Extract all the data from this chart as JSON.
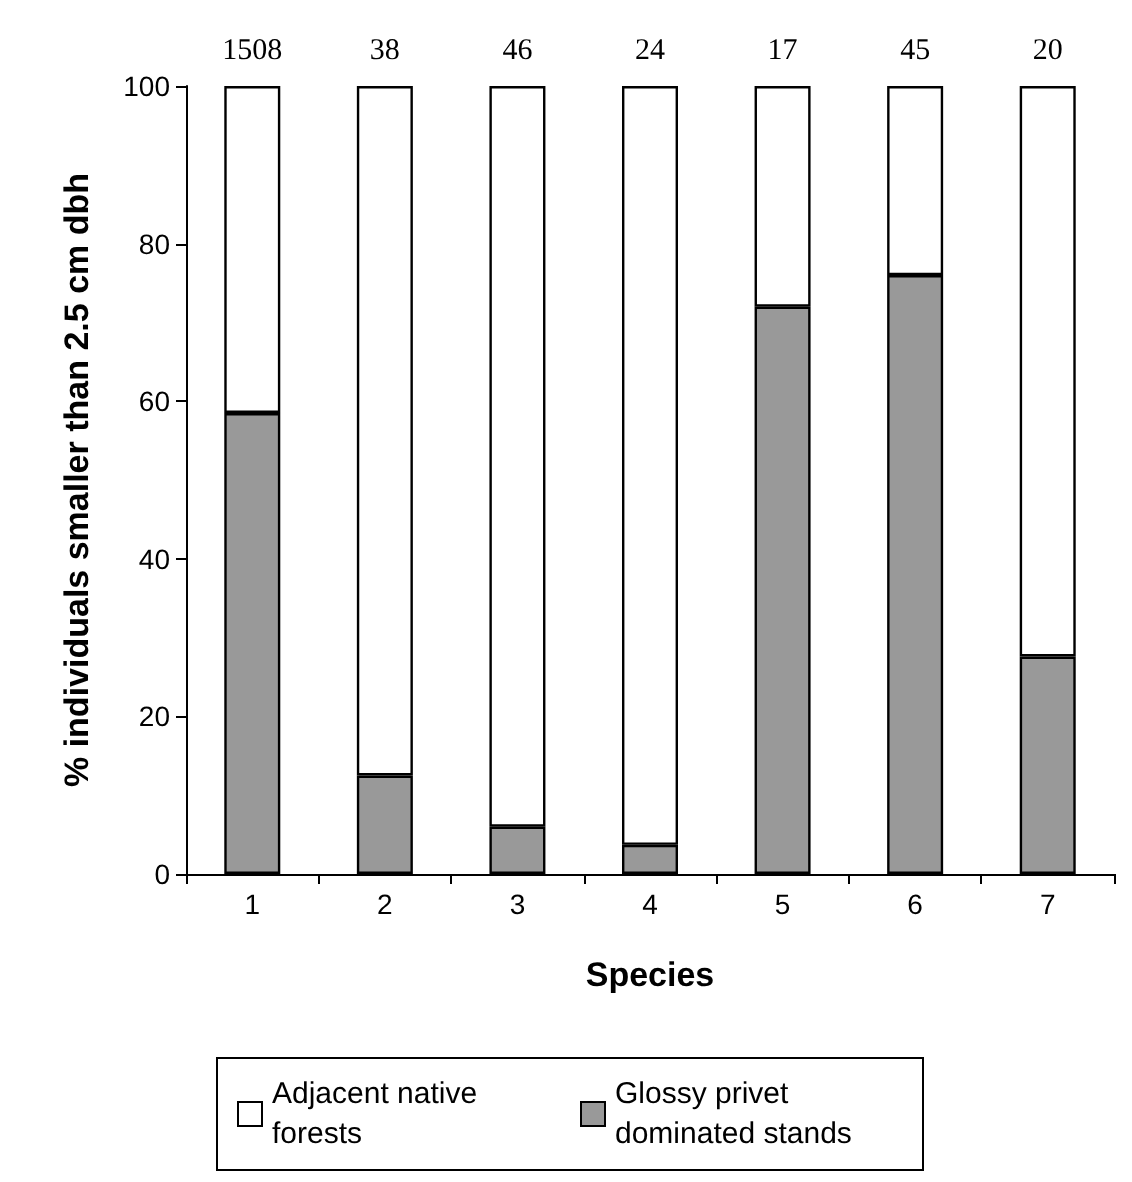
{
  "chart_data": {
    "type": "bar",
    "stacked": true,
    "xlabel": "Species",
    "ylabel": "% individuals smaller than 2.5 cm dbh",
    "categories": [
      "1",
      "2",
      "3",
      "4",
      "5",
      "6",
      "7"
    ],
    "series": [
      {
        "name": "Glossy privet dominated stands",
        "color": "#999999",
        "values": [
          58.5,
          12.5,
          6,
          3.7,
          72,
          76,
          27.6
        ]
      },
      {
        "name": "Adjacent native forests",
        "color": "#ffffff",
        "values": [
          41.5,
          87.5,
          94,
          96.3,
          28,
          24,
          72.4
        ]
      }
    ],
    "ylim": [
      0,
      100
    ],
    "yticks": [
      0,
      20,
      40,
      60,
      80,
      100
    ],
    "grid": false,
    "legend": "bottom",
    "annotations": [
      {
        "text": "1508",
        "x": "1",
        "y": 100
      },
      {
        "text": "38",
        "x": "2",
        "y": 100
      },
      {
        "text": "46",
        "x": "3",
        "y": 100
      },
      {
        "text": "24",
        "x": "4",
        "y": 100
      },
      {
        "text": "17",
        "x": "5",
        "y": 100
      },
      {
        "text": "45",
        "x": "6",
        "y": 100
      },
      {
        "text": "20",
        "x": "7",
        "y": 100
      }
    ]
  }
}
